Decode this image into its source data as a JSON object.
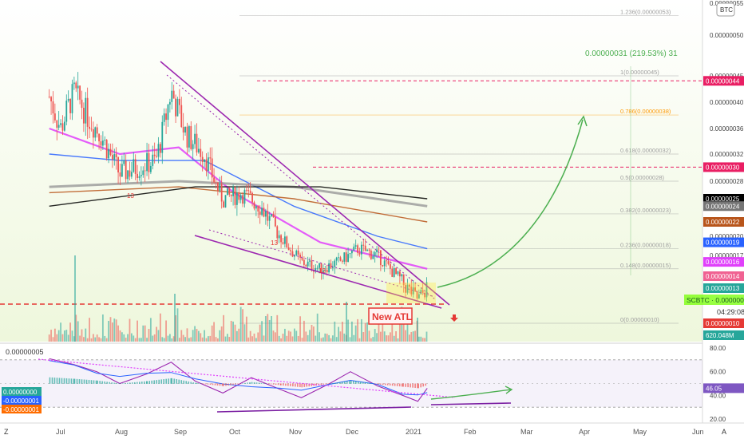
{
  "app": {
    "currency_badge": "BTC",
    "zoom_icon": "zoom-icon",
    "settings_icon": "auto-scale-icon"
  },
  "colors": {
    "up_candle": "#26a69a",
    "down_candle": "#ef5350",
    "ema_pink": "#e040fb",
    "ma_blue": "#2962ff",
    "ma_brown": "#b8551b",
    "ma_gray": "#9e9e9e",
    "ma_black": "#000000",
    "wedge_purple": "#9c27b0",
    "projection_green": "#4caf50",
    "atl_red": "#e53935",
    "fib_gray": "#9e9e9e",
    "fib_orange": "#ff9800",
    "target_magenta": "#e91e63"
  },
  "chart_data": [
    {
      "type": "candlestick",
      "symbol": "SCBTC",
      "quote_unit": "BTC",
      "x_labels": [
        "Jul",
        "Aug",
        "Sep",
        "Oct",
        "Nov",
        "Dec",
        "2021",
        "Feb",
        "Mar",
        "Apr",
        "May",
        "Jun"
      ],
      "y_ticks": [
        "0.00000055",
        "0.00000050",
        "0.00000045",
        "0.00000040",
        "0.00000036",
        "0.00000032",
        "0.00000028",
        "0.00000025",
        "0.00000022",
        "0.00000020",
        "0.00000017",
        "0.00000014",
        "0.00000013",
        "0.00000010"
      ],
      "price_path": [
        [
          "2020-06-25",
          4.1e-07
        ],
        [
          "2020-07-01",
          3.6e-07
        ],
        [
          "2020-07-08",
          4.2e-07
        ],
        [
          "2020-07-15",
          3.8e-07
        ],
        [
          "2020-07-22",
          3.5e-07
        ],
        [
          "2020-08-01",
          2.9e-07
        ],
        [
          "2020-08-10",
          3e-07
        ],
        [
          "2020-08-20",
          3.1e-07
        ],
        [
          "2020-08-28",
          4.2e-07
        ],
        [
          "2020-09-05",
          3.5e-07
        ],
        [
          "2020-09-15",
          3.2e-07
        ],
        [
          "2020-09-25",
          2.5e-07
        ],
        [
          "2020-10-05",
          2.6e-07
        ],
        [
          "2020-10-15",
          2.4e-07
        ],
        [
          "2020-10-25",
          2e-07
        ],
        [
          "2020-11-05",
          1.6e-07
        ],
        [
          "2020-11-15",
          1.5e-07
        ],
        [
          "2020-11-25",
          1.6e-07
        ],
        [
          "2020-12-05",
          1.8e-07
        ],
        [
          "2020-12-15",
          1.7e-07
        ],
        [
          "2020-12-25",
          1.4e-07
        ],
        [
          "2021-01-05",
          1.2e-07
        ],
        [
          "2021-01-10",
          1.3e-07
        ]
      ],
      "moving_averages": [
        {
          "color": "#e040fb",
          "path": [
            [
              "2020-06-25",
              3.6e-07
            ],
            [
              "2020-08-01",
              3.2e-07
            ],
            [
              "2020-09-01",
              3.3e-07
            ],
            [
              "2020-10-01",
              2.6e-07
            ],
            [
              "2020-11-15",
              1.9e-07
            ],
            [
              "2021-01-10",
              1.5e-07
            ]
          ]
        },
        {
          "color": "#2962ff",
          "path": [
            [
              "2020-06-25",
              3.2e-07
            ],
            [
              "2020-08-01",
              3.1e-07
            ],
            [
              "2020-09-15",
              3.1e-07
            ],
            [
              "2020-11-01",
              2.4e-07
            ],
            [
              "2020-12-15",
              2e-07
            ],
            [
              "2021-01-10",
              1.8e-07
            ]
          ]
        },
        {
          "color": "#9e9e9e",
          "path": [
            [
              "2020-06-25",
              2.7e-07
            ],
            [
              "2020-09-01",
              2.8e-07
            ],
            [
              "2020-11-01",
              2.7e-07
            ],
            [
              "2021-01-10",
              2.4e-07
            ]
          ]
        },
        {
          "color": "#b8551b",
          "path": [
            [
              "2020-06-25",
              2.6e-07
            ],
            [
              "2020-09-01",
              2.7e-07
            ],
            [
              "2020-11-01",
              2.5e-07
            ],
            [
              "2021-01-10",
              2.2e-07
            ]
          ]
        },
        {
          "color": "#000000",
          "path": [
            [
              "2020-06-25",
              2.4e-07
            ],
            [
              "2020-09-10",
              2.7e-07
            ],
            [
              "2020-11-15",
              2.7e-07
            ],
            [
              "2021-01-10",
              2.5e-07
            ]
          ]
        }
      ],
      "fib_levels": [
        {
          "label": "1.236(0.00000053)",
          "value": 5.3e-07
        },
        {
          "label": "1(0.00000045)",
          "value": 4.5e-07
        },
        {
          "label": "0.786(0.00000038)",
          "value": 3.8e-07
        },
        {
          "label": "0.618(0.00000032)",
          "value": 3.2e-07
        },
        {
          "label": "0.5(0.00000028)",
          "value": 2.8e-07
        },
        {
          "label": "0.382(0.00000023)",
          "value": 2.3e-07
        },
        {
          "label": "0.236(0.00000018)",
          "value": 1.8e-07
        },
        {
          "label": "0.148(0.00000015)",
          "value": 1.5e-07
        },
        {
          "label": "0(0.00000010)",
          "value": 1e-07
        }
      ],
      "target_lines": [
        {
          "value": 4.4e-07,
          "label": "0.00000044"
        },
        {
          "value": 3e-07,
          "label": "0.00000030"
        }
      ],
      "atl_line": {
        "value": 1e-07
      },
      "measurement_label": "0.00000031 (219.53%) 31",
      "annotation_new_atl": "New ATL",
      "markers": [
        "13",
        "13",
        "13"
      ],
      "price_tags": [
        {
          "label": "0.00000044",
          "bg": "#e91e63"
        },
        {
          "label": "0.00000030",
          "bg": "#e91e63"
        },
        {
          "label": "0.00000025",
          "bg": "#000000"
        },
        {
          "label": "0.00000024",
          "bg": "#757575"
        },
        {
          "label": "0.00000022",
          "bg": "#b8551b"
        },
        {
          "label": "0.00000019",
          "bg": "#2962ff"
        },
        {
          "label": "0.00000016",
          "bg": "#e040fb"
        },
        {
          "label": "0.00000014",
          "bg": "#f06292"
        },
        {
          "label": "0.00000013",
          "bg": "#26a69a"
        },
        {
          "label": "0.00000010",
          "bg": "#e53935"
        },
        {
          "label": "620.048M",
          "bg": "#26a69a"
        }
      ],
      "symbol_price_tag": "SCBTC · 0.00000013",
      "countdown": "04:29:08"
    },
    {
      "type": "line",
      "name": "oscillator",
      "y_ticks": [
        "80.00",
        "60.00",
        "40.00",
        "20.00"
      ],
      "current_value": "46.05",
      "header_value": "0.00000005",
      "left_tags": [
        {
          "label": "0.00000000",
          "bg": "#26a69a"
        },
        {
          "label": "-0.00000001",
          "bg": "#2962ff"
        },
        {
          "label": "-0.00000001",
          "bg": "#ff6d00"
        }
      ],
      "rsi_path": [
        [
          "2020-06-25",
          71
        ],
        [
          "2020-07-08",
          66
        ],
        [
          "2020-07-20",
          60
        ],
        [
          "2020-08-01",
          50
        ],
        [
          "2020-08-15",
          58
        ],
        [
          "2020-08-28",
          68
        ],
        [
          "2020-09-10",
          52
        ],
        [
          "2020-09-25",
          42
        ],
        [
          "2020-10-10",
          55
        ],
        [
          "2020-10-25",
          45
        ],
        [
          "2020-11-05",
          38
        ],
        [
          "2020-11-20",
          50
        ],
        [
          "2020-12-01",
          60
        ],
        [
          "2020-12-15",
          48
        ],
        [
          "2020-12-28",
          40
        ],
        [
          "2021-01-05",
          35
        ],
        [
          "2021-01-10",
          46
        ]
      ]
    }
  ]
}
